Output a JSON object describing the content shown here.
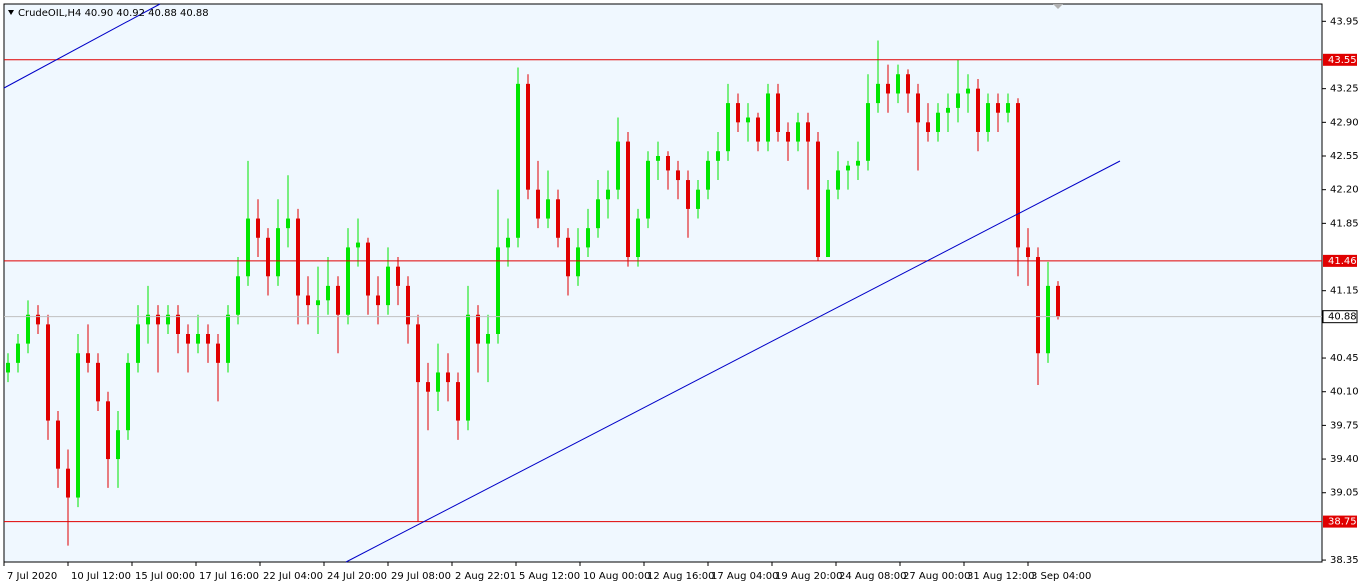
{
  "chart_data": {
    "type": "candlestick",
    "title": "CrudeOIL,H4  40.90 40.92 40.88 40.88",
    "up_color": "#00e600",
    "down_color": "#e00000",
    "level_color": "#e00000",
    "levels": [
      43.55,
      41.46,
      38.75
    ],
    "last_price": 40.88,
    "last_price_color": "#c0c0c0",
    "ylim": [
      38.33,
      44.13
    ],
    "yticks": [
      43.95,
      43.25,
      {
        "value": 42.9,
        "label": "42.90"
      },
      42.55,
      {
        "value": 42.2,
        "label": "42.20"
      },
      41.85,
      41.15,
      40.45,
      {
        "value": 40.1,
        "label": "40.10"
      },
      39.75,
      {
        "value": 39.4,
        "label": "39.40"
      },
      39.05,
      38.35
    ],
    "xlim": [
      -0.4,
      131.4
    ],
    "xticks": [
      {
        "value": -0.4,
        "label": "7 Jul 2020"
      },
      {
        "value": 6,
        "label": "10 Jul 12:00"
      },
      {
        "value": 12.4,
        "label": "15 Jul 00:00"
      },
      {
        "value": 18.8,
        "label": "17 Jul 16:00"
      },
      {
        "value": 25.2,
        "label": "22 Jul 04:00"
      },
      {
        "value": 31.6,
        "label": "24 Jul 20:00"
      },
      {
        "value": 38,
        "label": "29 Jul 08:00"
      },
      {
        "value": 44.4,
        "label": "2 Aug 22:01"
      },
      {
        "value": 50.8,
        "label": "5 Aug 12:00"
      },
      {
        "value": 57.2,
        "label": "10 Aug 00:00"
      },
      {
        "value": 63.6,
        "label": "12 Aug 16:00"
      },
      {
        "value": 70,
        "label": "17 Aug 04:00"
      },
      {
        "value": 76.4,
        "label": "19 Aug 20:00"
      },
      {
        "value": 82.8,
        "label": "24 Aug 08:00"
      },
      {
        "value": 89.2,
        "label": "27 Aug 00:00"
      },
      {
        "value": 95.6,
        "label": "31 Aug 12:00"
      },
      {
        "value": 102,
        "label": "3 Sep 04:00"
      }
    ],
    "ohlc": [
      [
        40.3,
        40.5,
        40.2,
        40.4
      ],
      [
        40.4,
        40.7,
        40.3,
        40.6
      ],
      [
        40.6,
        41.05,
        40.5,
        40.9
      ],
      [
        40.9,
        41.0,
        40.7,
        40.8
      ],
      [
        40.8,
        40.9,
        39.6,
        39.8
      ],
      [
        39.8,
        39.9,
        39.1,
        39.3
      ],
      [
        39.3,
        39.5,
        38.5,
        39.0
      ],
      [
        39.0,
        40.7,
        38.9,
        40.5
      ],
      [
        40.5,
        40.8,
        40.3,
        40.4
      ],
      [
        40.4,
        40.5,
        39.9,
        40.0
      ],
      [
        40.0,
        40.1,
        39.1,
        39.4
      ],
      [
        39.4,
        39.9,
        39.1,
        39.7
      ],
      [
        39.7,
        40.5,
        39.6,
        40.4
      ],
      [
        40.4,
        41.0,
        40.3,
        40.8
      ],
      [
        40.8,
        41.2,
        40.6,
        40.9
      ],
      [
        40.9,
        41.0,
        40.3,
        40.8
      ],
      [
        40.8,
        41.0,
        40.7,
        40.9
      ],
      [
        40.9,
        41.0,
        40.5,
        40.7
      ],
      [
        40.7,
        40.8,
        40.3,
        40.6
      ],
      [
        40.6,
        40.9,
        40.5,
        40.7
      ],
      [
        40.7,
        40.8,
        40.4,
        40.6
      ],
      [
        40.6,
        40.7,
        40.0,
        40.4
      ],
      [
        40.4,
        41.0,
        40.3,
        40.9
      ],
      [
        40.9,
        41.5,
        40.8,
        41.3
      ],
      [
        41.3,
        42.5,
        41.2,
        41.9
      ],
      [
        41.9,
        42.1,
        41.5,
        41.7
      ],
      [
        41.7,
        41.8,
        41.1,
        41.3
      ],
      [
        41.3,
        42.1,
        41.2,
        41.8
      ],
      [
        41.8,
        42.35,
        41.6,
        41.9
      ],
      [
        41.9,
        42.0,
        40.8,
        41.1
      ],
      [
        41.1,
        41.3,
        40.8,
        41.0
      ],
      [
        41.0,
        41.4,
        40.7,
        41.05
      ],
      [
        41.05,
        41.5,
        40.9,
        41.2
      ],
      [
        41.2,
        41.3,
        40.5,
        40.9
      ],
      [
        40.9,
        41.8,
        40.8,
        41.6
      ],
      [
        41.6,
        41.9,
        41.4,
        41.65
      ],
      [
        41.65,
        41.7,
        40.9,
        41.1
      ],
      [
        41.1,
        41.3,
        40.8,
        41.0
      ],
      [
        41.0,
        41.6,
        40.9,
        41.4
      ],
      [
        41.4,
        41.5,
        41.0,
        41.2
      ],
      [
        41.2,
        41.3,
        40.6,
        40.8
      ],
      [
        40.8,
        40.9,
        38.75,
        40.2
      ],
      [
        40.2,
        40.4,
        39.7,
        40.1
      ],
      [
        40.1,
        40.6,
        39.9,
        40.3
      ],
      [
        40.3,
        40.5,
        40.0,
        40.2
      ],
      [
        40.2,
        40.3,
        39.6,
        39.8
      ],
      [
        39.8,
        41.2,
        39.7,
        40.9
      ],
      [
        40.9,
        41.0,
        40.3,
        40.6
      ],
      [
        40.6,
        40.9,
        40.2,
        40.7
      ],
      [
        40.7,
        42.2,
        40.6,
        41.6
      ],
      [
        41.6,
        41.9,
        41.4,
        41.7
      ],
      [
        41.7,
        43.47,
        41.6,
        43.3
      ],
      [
        43.3,
        43.4,
        42.1,
        42.2
      ],
      [
        42.2,
        42.5,
        41.8,
        41.9
      ],
      [
        41.9,
        42.4,
        41.8,
        42.1
      ],
      [
        42.1,
        42.2,
        41.6,
        41.7
      ],
      [
        41.7,
        41.8,
        41.1,
        41.3
      ],
      [
        41.3,
        41.8,
        41.2,
        41.6
      ],
      [
        41.6,
        42.0,
        41.5,
        41.8
      ],
      [
        41.8,
        42.3,
        41.7,
        42.1
      ],
      [
        42.1,
        42.4,
        41.9,
        42.2
      ],
      [
        42.2,
        42.95,
        42.1,
        42.7
      ],
      [
        42.7,
        42.8,
        41.4,
        41.5
      ],
      [
        41.5,
        42.0,
        41.4,
        41.9
      ],
      [
        41.9,
        42.6,
        41.8,
        42.5
      ],
      [
        42.5,
        42.7,
        42.3,
        42.55
      ],
      [
        42.55,
        42.6,
        42.2,
        42.4
      ],
      [
        42.4,
        42.5,
        42.1,
        42.3
      ],
      [
        42.3,
        42.4,
        41.7,
        42.0
      ],
      [
        42.0,
        42.3,
        41.9,
        42.2
      ],
      [
        42.2,
        42.6,
        42.1,
        42.5
      ],
      [
        42.5,
        42.8,
        42.3,
        42.6
      ],
      [
        42.6,
        43.3,
        42.5,
        43.1
      ],
      [
        43.1,
        43.2,
        42.8,
        42.9
      ],
      [
        42.9,
        43.1,
        42.7,
        42.95
      ],
      [
        42.95,
        43.0,
        42.6,
        42.7
      ],
      [
        42.7,
        43.3,
        42.6,
        43.2
      ],
      [
        43.2,
        43.3,
        42.7,
        42.8
      ],
      [
        42.8,
        42.9,
        42.5,
        42.7
      ],
      [
        42.7,
        43.0,
        42.6,
        42.9
      ],
      [
        42.9,
        43.0,
        42.2,
        42.7
      ],
      [
        42.7,
        42.8,
        41.46,
        41.5
      ],
      [
        41.5,
        42.3,
        41.5,
        42.2
      ],
      [
        42.2,
        42.6,
        42.1,
        42.4
      ],
      [
        42.4,
        42.5,
        42.2,
        42.45
      ],
      [
        42.45,
        42.7,
        42.3,
        42.5
      ],
      [
        42.5,
        43.4,
        42.4,
        43.1
      ],
      [
        43.1,
        43.75,
        43.0,
        43.3
      ],
      [
        43.3,
        43.5,
        43.0,
        43.2
      ],
      [
        43.2,
        43.5,
        43.1,
        43.4
      ],
      [
        43.4,
        43.45,
        43.0,
        43.2
      ],
      [
        43.2,
        43.3,
        42.4,
        42.9
      ],
      [
        42.9,
        43.1,
        42.7,
        42.8
      ],
      [
        42.8,
        43.1,
        42.7,
        43.0
      ],
      [
        43.0,
        43.2,
        42.8,
        43.05
      ],
      [
        43.05,
        43.55,
        42.9,
        43.2
      ],
      [
        43.2,
        43.4,
        43.0,
        43.25
      ],
      [
        43.25,
        43.35,
        42.6,
        42.8
      ],
      [
        42.8,
        43.2,
        42.7,
        43.1
      ],
      [
        43.1,
        43.2,
        42.8,
        43.0
      ],
      [
        43.0,
        43.2,
        42.9,
        43.1
      ],
      [
        43.1,
        43.15,
        41.3,
        41.6
      ],
      [
        41.6,
        41.8,
        41.2,
        41.5
      ],
      [
        41.5,
        41.6,
        40.17,
        40.5
      ],
      [
        40.5,
        41.45,
        40.4,
        41.2
      ],
      [
        41.2,
        41.25,
        40.85,
        40.88
      ]
    ]
  }
}
